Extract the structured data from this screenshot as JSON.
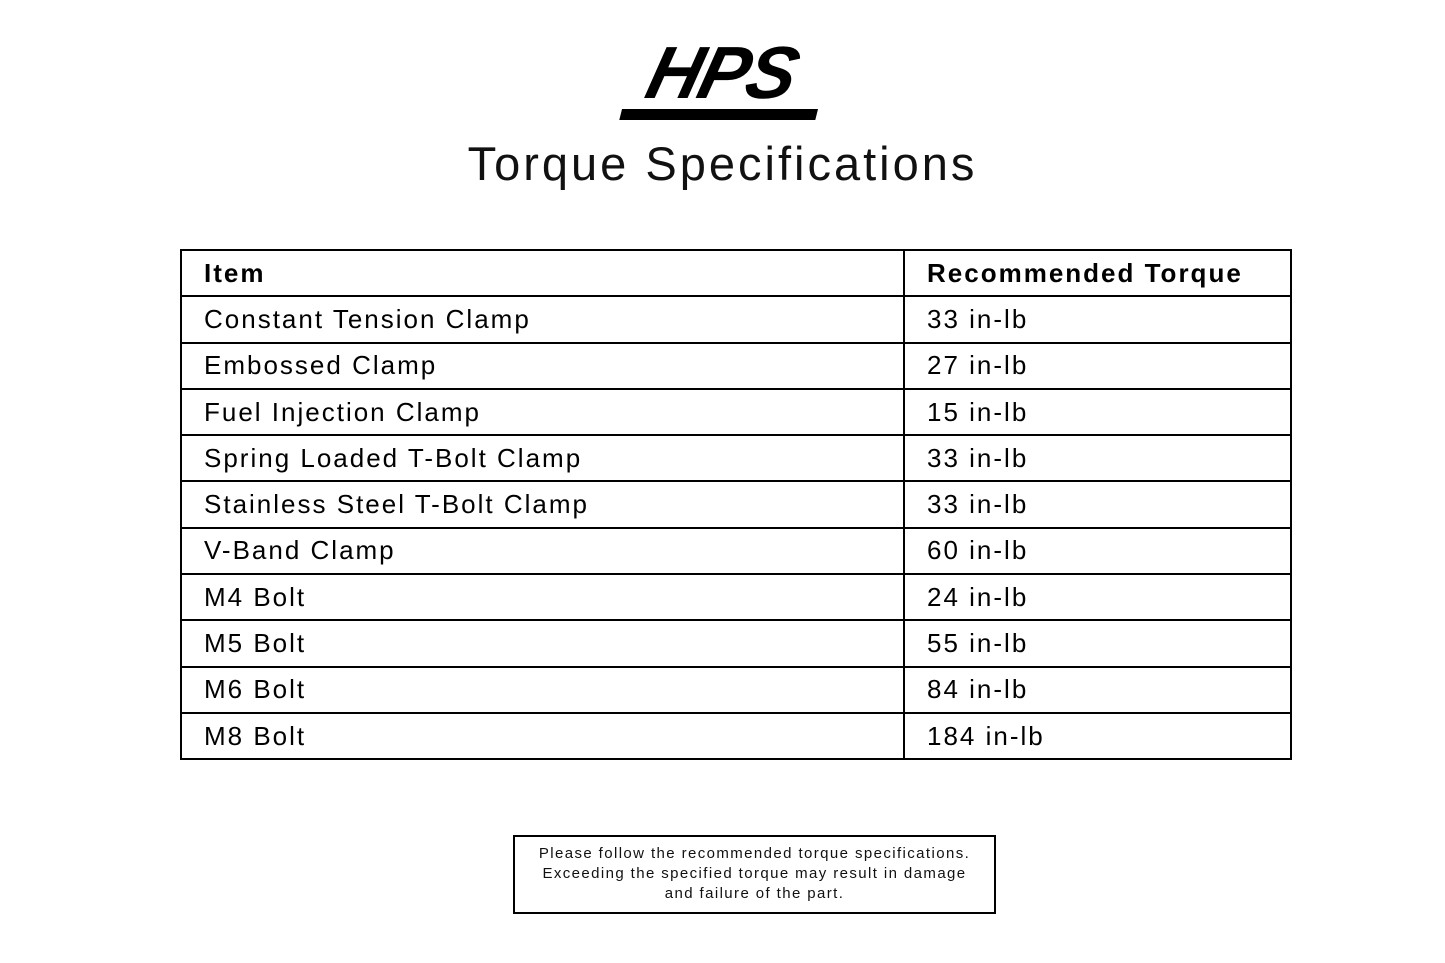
{
  "logo": {
    "text": "HPS"
  },
  "title": "Torque Specifications",
  "table": {
    "headers": [
      "Item",
      "Recommended Torque"
    ],
    "rows": [
      [
        "Constant Tension Clamp",
        "33 in-lb"
      ],
      [
        "Embossed Clamp",
        "27 in-lb"
      ],
      [
        "Fuel Injection Clamp",
        "15 in-lb"
      ],
      [
        "Spring Loaded T-Bolt Clamp",
        "33 in-lb"
      ],
      [
        "Stainless Steel T-Bolt Clamp",
        "33 in-lb"
      ],
      [
        "V-Band Clamp",
        "60 in-lb"
      ],
      [
        "M4 Bolt",
        "24 in-lb"
      ],
      [
        "M5 Bolt",
        "55 in-lb"
      ],
      [
        "M6 Bolt",
        "84 in-lb"
      ],
      [
        "M8 Bolt",
        "184 in-lb"
      ]
    ]
  },
  "note": {
    "lines": [
      "Please follow the recommended torque specifications.",
      "Exceeding the specified torque may result in damage",
      "and failure of the part."
    ]
  },
  "colors": {
    "background": "#ffffff",
    "text": "#000000",
    "border": "#000000"
  }
}
